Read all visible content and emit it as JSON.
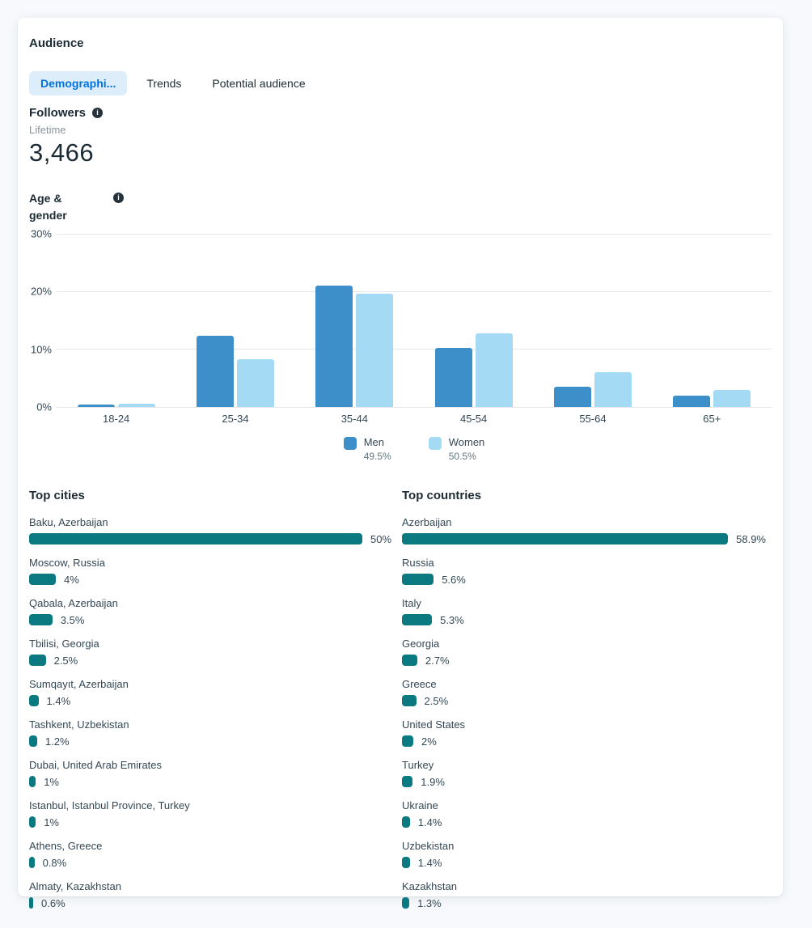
{
  "app": {
    "section_title": "Audience"
  },
  "tabs": [
    {
      "label": "Demographi...",
      "active": true
    },
    {
      "label": "Trends",
      "active": false
    },
    {
      "label": "Potential audience",
      "active": false
    }
  ],
  "followers": {
    "title": "Followers",
    "period": "Lifetime",
    "count": "3,466"
  },
  "age_gender": {
    "title_line1": "Age &",
    "title_line2": "gender",
    "ymax": 30,
    "yticks": [
      {
        "label": "30%",
        "value": 30
      },
      {
        "label": "20%",
        "value": 20
      },
      {
        "label": "10%",
        "value": 10
      },
      {
        "label": "0%",
        "value": 0
      }
    ],
    "categories": [
      "18-24",
      "25-34",
      "35-44",
      "45-54",
      "55-64",
      "65+"
    ],
    "series": [
      {
        "name": "Men",
        "total_label": "49.5%",
        "color": "#3c8fc8",
        "values": [
          0.4,
          12.4,
          21.0,
          10.2,
          3.5,
          1.9
        ]
      },
      {
        "name": "Women",
        "total_label": "50.5%",
        "color": "#a5daf5",
        "values": [
          0.5,
          8.3,
          19.6,
          12.8,
          6.0,
          3.0
        ]
      }
    ]
  },
  "top_cities": {
    "title": "Top cities",
    "max": 50,
    "items": [
      {
        "label": "Baku, Azerbaijan",
        "value": 50,
        "value_label": "50%"
      },
      {
        "label": "Moscow, Russia",
        "value": 4,
        "value_label": "4%"
      },
      {
        "label": "Qabala, Azerbaijan",
        "value": 3.5,
        "value_label": "3.5%"
      },
      {
        "label": "Tbilisi, Georgia",
        "value": 2.5,
        "value_label": "2.5%"
      },
      {
        "label": "Sumqayıt, Azerbaijan",
        "value": 1.4,
        "value_label": "1.4%"
      },
      {
        "label": "Tashkent, Uzbekistan",
        "value": 1.2,
        "value_label": "1.2%"
      },
      {
        "label": "Dubai, United Arab Emirates",
        "value": 1,
        "value_label": "1%"
      },
      {
        "label": "Istanbul, Istanbul Province, Turkey",
        "value": 1,
        "value_label": "1%"
      },
      {
        "label": "Athens, Greece",
        "value": 0.8,
        "value_label": "0.8%"
      },
      {
        "label": "Almaty, Kazakhstan",
        "value": 0.6,
        "value_label": "0.6%"
      }
    ]
  },
  "top_countries": {
    "title": "Top countries",
    "max": 58.9,
    "items": [
      {
        "label": "Azerbaijan",
        "value": 58.9,
        "value_label": "58.9%"
      },
      {
        "label": "Russia",
        "value": 5.6,
        "value_label": "5.6%"
      },
      {
        "label": "Italy",
        "value": 5.3,
        "value_label": "5.3%"
      },
      {
        "label": "Georgia",
        "value": 2.7,
        "value_label": "2.7%"
      },
      {
        "label": "Greece",
        "value": 2.5,
        "value_label": "2.5%"
      },
      {
        "label": "United States",
        "value": 2,
        "value_label": "2%"
      },
      {
        "label": "Turkey",
        "value": 1.9,
        "value_label": "1.9%"
      },
      {
        "label": "Ukraine",
        "value": 1.4,
        "value_label": "1.4%"
      },
      {
        "label": "Uzbekistan",
        "value": 1.4,
        "value_label": "1.4%"
      },
      {
        "label": "Kazakhstan",
        "value": 1.3,
        "value_label": "1.3%"
      }
    ]
  },
  "colors": {
    "men": "#3c8fc8",
    "women": "#a5daf5",
    "list_bar_teal": "#0b7a80",
    "active_tab_text": "#0073e0",
    "active_tab_bg": "#ddedf9"
  },
  "chart_data": [
    {
      "type": "bar",
      "title": "Age & gender",
      "categories": [
        "18-24",
        "25-34",
        "35-44",
        "45-54",
        "55-64",
        "65+"
      ],
      "series": [
        {
          "name": "Men (49.5%)",
          "values": [
            0.4,
            12.4,
            21.0,
            10.2,
            3.5,
            1.9
          ]
        },
        {
          "name": "Women (50.5%)",
          "values": [
            0.5,
            8.3,
            19.6,
            12.8,
            6.0,
            3.0
          ]
        }
      ],
      "xlabel": "",
      "ylabel": "",
      "ylim": [
        0,
        30
      ],
      "yticks": [
        "0%",
        "10%",
        "20%",
        "30%"
      ],
      "grid": true,
      "legend_position": "bottom",
      "unit": "%"
    },
    {
      "type": "bar",
      "orientation": "horizontal",
      "title": "Top cities",
      "categories": [
        "Baku, Azerbaijan",
        "Moscow, Russia",
        "Qabala, Azerbaijan",
        "Tbilisi, Georgia",
        "Sumqayıt, Azerbaijan",
        "Tashkent, Uzbekistan",
        "Dubai, United Arab Emirates",
        "Istanbul, Istanbul Province, Turkey",
        "Athens, Greece",
        "Almaty, Kazakhstan"
      ],
      "values": [
        50,
        4,
        3.5,
        2.5,
        1.4,
        1.2,
        1,
        1,
        0.8,
        0.6
      ],
      "unit": "%"
    },
    {
      "type": "bar",
      "orientation": "horizontal",
      "title": "Top countries",
      "categories": [
        "Azerbaijan",
        "Russia",
        "Italy",
        "Georgia",
        "Greece",
        "United States",
        "Turkey",
        "Ukraine",
        "Uzbekistan",
        "Kazakhstan"
      ],
      "values": [
        58.9,
        5.6,
        5.3,
        2.7,
        2.5,
        2,
        1.9,
        1.4,
        1.4,
        1.3
      ],
      "unit": "%"
    }
  ]
}
